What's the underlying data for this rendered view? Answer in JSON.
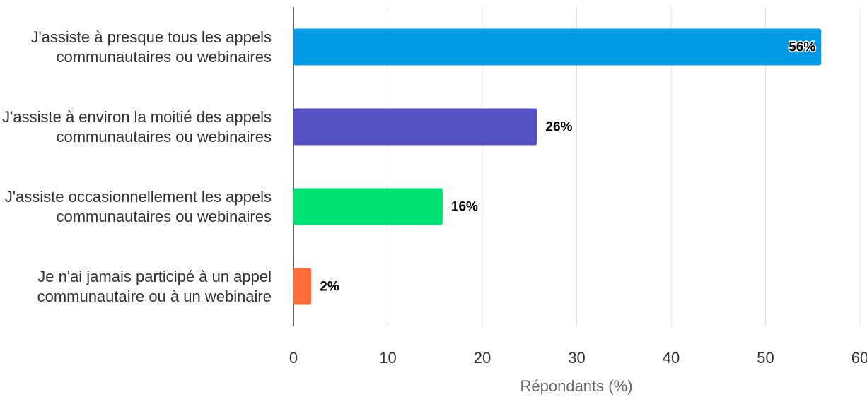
{
  "chart_data": {
    "type": "barh",
    "categories": [
      "J'assiste à presque tous les appels communautaires ou webinaires",
      "J'assiste à environ la moitié des appels communautaires ou webinaires",
      "J'assiste occasionnellement les appels communautaires ou webinaires",
      "Je n'ai jamais participé à un appel communautaire ou à un webinaire"
    ],
    "values": [
      55.9,
      25.8,
      15.8,
      1.9
    ],
    "value_labels": [
      "56%",
      "26%",
      "16%",
      "2%"
    ],
    "colors": [
      "#039be5",
      "#5652c6",
      "#00e272",
      "#ff6d3a"
    ],
    "xlabel": "Répondants (%)",
    "xlim": [
      0,
      60
    ],
    "xticks": [
      0,
      10,
      20,
      30,
      40,
      50,
      60
    ],
    "grid": true
  }
}
